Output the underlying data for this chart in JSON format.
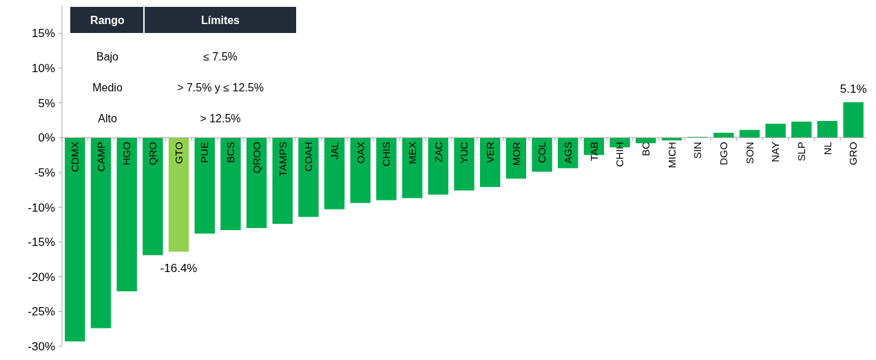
{
  "chart_data": {
    "type": "bar",
    "categories": [
      "CDMX",
      "CAMP",
      "HGO",
      "QRO",
      "GTO",
      "PUE",
      "BCS",
      "QROO",
      "TAMPS",
      "COAH",
      "JAL",
      "OAX",
      "CHIS",
      "MEX",
      "ZAC",
      "YUC",
      "VER",
      "MOR",
      "COL",
      "AGS",
      "TAB",
      "CHIH",
      "BC",
      "MICH",
      "SIN",
      "DGO",
      "SON",
      "NAY",
      "SLP",
      "NL",
      "GRO"
    ],
    "values": [
      -29.3,
      -27.4,
      -22.1,
      -16.9,
      -16.4,
      -13.8,
      -13.3,
      -13.0,
      -12.4,
      -11.4,
      -10.3,
      -9.4,
      -9.0,
      -8.7,
      -8.2,
      -7.6,
      -7.1,
      -5.9,
      -4.9,
      -4.4,
      -2.5,
      -1.4,
      -0.8,
      -0.4,
      0.1,
      0.7,
      1.1,
      2.0,
      2.3,
      2.4,
      5.1
    ],
    "colors": [
      "#00b050",
      "#00b050",
      "#00b050",
      "#00b050",
      "#92d050",
      "#00b050",
      "#00b050",
      "#00b050",
      "#00b050",
      "#00b050",
      "#00b050",
      "#00b050",
      "#00b050",
      "#00b050",
      "#00b050",
      "#00b050",
      "#00b050",
      "#00b050",
      "#00b050",
      "#00b050",
      "#00b050",
      "#00b050",
      "#00b050",
      "#00b050",
      "#00b050",
      "#00b050",
      "#00b050",
      "#00b050",
      "#00b050",
      "#00b050",
      "#00b050"
    ],
    "value_labels": [
      null,
      null,
      null,
      null,
      "-16.4%",
      null,
      null,
      null,
      null,
      null,
      null,
      null,
      null,
      null,
      null,
      null,
      null,
      null,
      null,
      null,
      null,
      null,
      null,
      null,
      null,
      null,
      null,
      null,
      null,
      null,
      "5.1%"
    ],
    "ylim": [
      -30,
      19
    ],
    "yticks": [
      {
        "value": -30,
        "label": "-30%"
      },
      {
        "value": -25,
        "label": "-25%"
      },
      {
        "value": -20,
        "label": "-20%"
      },
      {
        "value": -15,
        "label": "-15%"
      },
      {
        "value": -10,
        "label": "-10%"
      },
      {
        "value": -5,
        "label": "-5%"
      },
      {
        "value": 0,
        "label": "0%"
      },
      {
        "value": 5,
        "label": "5%"
      },
      {
        "value": 10,
        "label": "10%"
      },
      {
        "value": 15,
        "label": "15%"
      }
    ],
    "annotations": [
      "Rango",
      "Límites",
      "Bajo",
      "≤ 7.5%",
      "Medio",
      "> 7.5% y ≤ 12.5%",
      "Alto",
      "> 12.5%"
    ]
  }
}
